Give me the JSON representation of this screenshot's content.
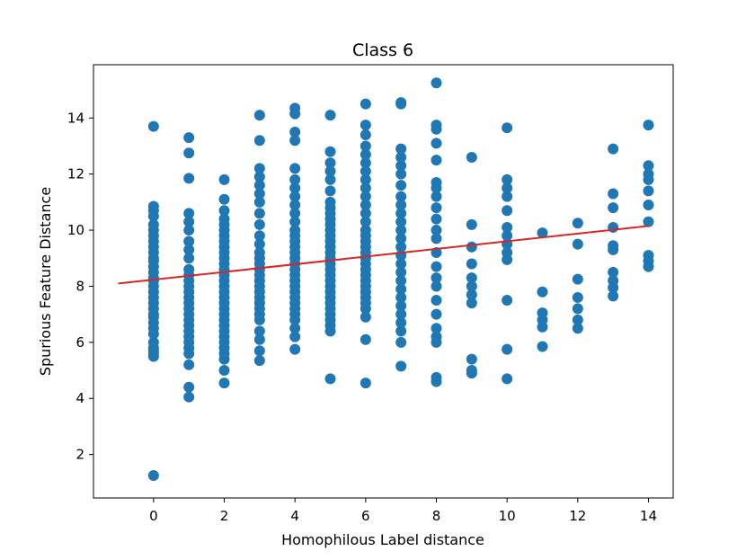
{
  "chart_data": {
    "type": "scatter",
    "title": "Class 6",
    "xlabel": "Homophilous Label distance",
    "ylabel": "Spurious Feature Distance",
    "xlim": [
      -1.7,
      14.7
    ],
    "ylim": [
      0.45,
      15.9
    ],
    "xticks": [
      0,
      2,
      4,
      6,
      8,
      10,
      12,
      14
    ],
    "yticks": [
      2,
      4,
      6,
      8,
      10,
      12,
      14
    ],
    "grid": false,
    "colors": {
      "points": "#1f77b4",
      "fit_line": "#d62728"
    },
    "fit_line": {
      "x": [
        -1,
        14
      ],
      "y": [
        8.1,
        10.15
      ]
    },
    "points": [
      {
        "x": 0,
        "y": [
          1.25,
          5.5,
          5.6,
          5.7,
          5.8,
          6.0,
          6.3,
          6.5,
          6.7,
          6.9,
          7.0,
          7.2,
          7.4,
          7.6,
          7.8,
          8.0,
          8.2,
          8.3,
          8.5,
          8.7,
          8.9,
          9.0,
          9.2,
          9.4,
          9.6,
          9.8,
          10.0,
          10.2,
          10.5,
          10.7,
          10.85,
          13.7
        ]
      },
      {
        "x": 1,
        "y": [
          4.05,
          4.4,
          5.2,
          5.6,
          5.8,
          6.0,
          6.2,
          6.4,
          6.6,
          6.8,
          7.0,
          7.2,
          7.4,
          7.6,
          7.8,
          8.0,
          8.2,
          8.4,
          8.6,
          9.0,
          9.3,
          9.6,
          10.0,
          10.3,
          10.6,
          11.85,
          12.75,
          13.3
        ]
      },
      {
        "x": 2,
        "y": [
          4.55,
          5.0,
          5.4,
          5.6,
          5.8,
          6.0,
          6.2,
          6.4,
          6.6,
          6.8,
          7.0,
          7.2,
          7.4,
          7.6,
          7.8,
          8.0,
          8.2,
          8.4,
          8.6,
          8.8,
          9.0,
          9.2,
          9.4,
          9.6,
          9.8,
          10.0,
          10.2,
          10.4,
          10.7,
          11.1,
          11.8
        ]
      },
      {
        "x": 3,
        "y": [
          5.35,
          5.7,
          6.1,
          6.4,
          6.8,
          7.0,
          7.2,
          7.4,
          7.6,
          7.8,
          8.0,
          8.2,
          8.4,
          8.6,
          8.8,
          9.0,
          9.2,
          9.5,
          9.8,
          10.2,
          10.6,
          11.0,
          11.3,
          11.6,
          11.9,
          12.2,
          13.2,
          14.1
        ]
      },
      {
        "x": 4,
        "y": [
          5.75,
          6.2,
          6.5,
          6.8,
          7.0,
          7.2,
          7.4,
          7.6,
          7.8,
          8.0,
          8.2,
          8.4,
          8.6,
          8.8,
          9.0,
          9.2,
          9.4,
          9.6,
          9.8,
          10.0,
          10.3,
          10.6,
          10.9,
          11.2,
          11.5,
          11.8,
          12.2,
          13.2,
          13.5,
          14.15,
          14.35
        ]
      },
      {
        "x": 5,
        "y": [
          4.7,
          6.4,
          6.6,
          6.8,
          7.0,
          7.2,
          7.4,
          7.6,
          7.8,
          8.0,
          8.2,
          8.4,
          8.6,
          8.8,
          9.0,
          9.2,
          9.4,
          9.6,
          9.8,
          10.0,
          10.2,
          10.4,
          10.6,
          10.8,
          11.0,
          11.4,
          11.8,
          12.1,
          12.4,
          12.8,
          14.1
        ]
      },
      {
        "x": 6,
        "y": [
          4.55,
          6.1,
          6.9,
          7.2,
          7.4,
          7.6,
          7.8,
          8.0,
          8.2,
          8.4,
          8.6,
          8.8,
          9.0,
          9.2,
          9.4,
          9.6,
          9.8,
          10.0,
          10.3,
          10.6,
          10.9,
          11.2,
          11.5,
          11.8,
          12.1,
          12.4,
          12.7,
          13.0,
          13.4,
          13.75,
          14.5
        ]
      },
      {
        "x": 7,
        "y": [
          5.15,
          6.0,
          6.4,
          6.7,
          7.0,
          7.3,
          7.6,
          7.9,
          8.2,
          8.5,
          8.8,
          9.1,
          9.4,
          9.7,
          10.0,
          10.3,
          10.6,
          10.9,
          11.2,
          11.6,
          12.0,
          12.3,
          12.6,
          12.9,
          14.5,
          14.55
        ]
      },
      {
        "x": 8,
        "y": [
          4.6,
          4.75,
          6.0,
          6.2,
          6.5,
          7.0,
          7.5,
          8.0,
          8.3,
          8.7,
          9.2,
          9.7,
          10.0,
          10.4,
          10.8,
          11.2,
          11.5,
          11.7,
          12.5,
          13.1,
          13.6,
          13.75,
          15.25
        ]
      },
      {
        "x": 9,
        "y": [
          4.9,
          5.0,
          5.4,
          7.4,
          7.7,
          8.0,
          8.3,
          8.8,
          9.4,
          10.2,
          12.6
        ]
      },
      {
        "x": 10,
        "y": [
          4.7,
          5.75,
          7.5,
          8.95,
          9.2,
          9.5,
          9.8,
          10.1,
          10.7,
          11.2,
          11.5,
          11.8,
          13.65
        ]
      },
      {
        "x": 11,
        "y": [
          5.85,
          6.55,
          6.8,
          7.05,
          7.8,
          9.9
        ]
      },
      {
        "x": 12,
        "y": [
          6.5,
          6.8,
          7.2,
          7.6,
          8.25,
          9.5,
          10.25
        ]
      },
      {
        "x": 13,
        "y": [
          7.65,
          7.95,
          8.2,
          8.5,
          9.3,
          9.45,
          10.1,
          10.8,
          11.3,
          12.9
        ]
      },
      {
        "x": 14,
        "y": [
          8.7,
          8.9,
          9.1,
          10.3,
          10.9,
          11.4,
          11.8,
          12.0,
          12.3,
          13.75
        ]
      }
    ]
  }
}
